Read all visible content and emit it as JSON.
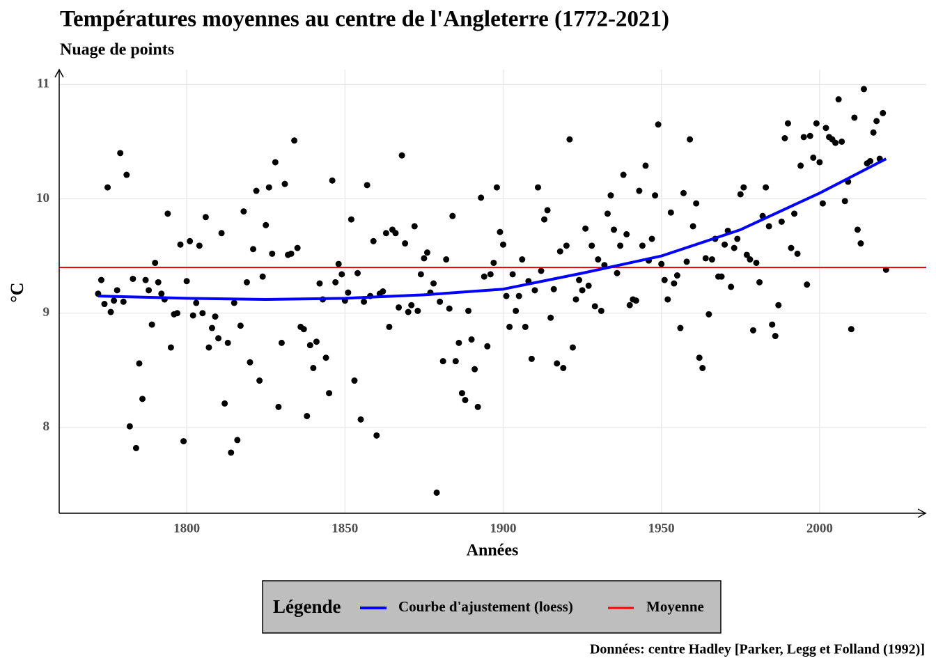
{
  "chart_data": {
    "type": "scatter",
    "title": "Températures moyennes au centre de l'Angleterre (1772-2021)",
    "subtitle": "Nuage de points",
    "xlabel": "Années",
    "ylabel": "°C",
    "caption": "Données: centre Hadley [Parker, Legg et Folland (1992)]",
    "legend_title": "Légende",
    "color": "#000000",
    "grid": true,
    "xlim": [
      1759.7,
      2033.7
    ],
    "ylim": [
      7.25,
      11.13
    ],
    "xticks": [
      1800,
      1850,
      1900,
      1950,
      2000
    ],
    "yticks": [
      8,
      9,
      10,
      11
    ],
    "x": [
      1772,
      1773,
      1774,
      1775,
      1776,
      1777,
      1778,
      1779,
      1780,
      1781,
      1782,
      1783,
      1784,
      1785,
      1786,
      1787,
      1788,
      1789,
      1790,
      1791,
      1792,
      1793,
      1794,
      1795,
      1796,
      1797,
      1798,
      1799,
      1800,
      1801,
      1802,
      1803,
      1804,
      1805,
      1806,
      1807,
      1808,
      1809,
      1810,
      1811,
      1812,
      1813,
      1814,
      1815,
      1816,
      1817,
      1818,
      1819,
      1820,
      1821,
      1822,
      1823,
      1824,
      1825,
      1826,
      1827,
      1828,
      1829,
      1830,
      1831,
      1832,
      1833,
      1834,
      1835,
      1836,
      1837,
      1838,
      1839,
      1840,
      1841,
      1842,
      1843,
      1844,
      1845,
      1846,
      1847,
      1848,
      1849,
      1850,
      1851,
      1852,
      1853,
      1854,
      1855,
      1856,
      1857,
      1858,
      1859,
      1860,
      1861,
      1862,
      1863,
      1864,
      1865,
      1866,
      1867,
      1868,
      1869,
      1870,
      1871,
      1872,
      1873,
      1874,
      1875,
      1876,
      1877,
      1878,
      1879,
      1880,
      1881,
      1882,
      1883,
      1884,
      1885,
      1886,
      1887,
      1888,
      1889,
      1890,
      1891,
      1892,
      1893,
      1894,
      1895,
      1896,
      1897,
      1898,
      1899,
      1900,
      1901,
      1902,
      1903,
      1904,
      1905,
      1906,
      1907,
      1908,
      1909,
      1910,
      1911,
      1912,
      1913,
      1914,
      1915,
      1916,
      1917,
      1918,
      1919,
      1920,
      1921,
      1922,
      1923,
      1924,
      1925,
      1926,
      1927,
      1928,
      1929,
      1930,
      1931,
      1932,
      1933,
      1934,
      1935,
      1936,
      1937,
      1938,
      1939,
      1940,
      1941,
      1942,
      1943,
      1944,
      1945,
      1946,
      1947,
      1948,
      1949,
      1950,
      1951,
      1952,
      1953,
      1954,
      1955,
      1956,
      1957,
      1958,
      1959,
      1960,
      1961,
      1962,
      1963,
      1964,
      1965,
      1966,
      1967,
      1968,
      1969,
      1970,
      1971,
      1972,
      1973,
      1974,
      1975,
      1976,
      1977,
      1978,
      1979,
      1980,
      1981,
      1982,
      1983,
      1984,
      1985,
      1986,
      1987,
      1988,
      1989,
      1990,
      1991,
      1992,
      1993,
      1994,
      1995,
      1996,
      1997,
      1998,
      1999,
      2000,
      2001,
      2002,
      2003,
      2004,
      2005,
      2006,
      2007,
      2008,
      2009,
      2010,
      2011,
      2012,
      2013,
      2014,
      2015,
      2016,
      2017,
      2018,
      2019,
      2020,
      2021
    ],
    "values": [
      9.17,
      9.29,
      9.08,
      10.1,
      9.01,
      9.11,
      9.2,
      10.4,
      9.1,
      10.21,
      8.01,
      9.3,
      7.82,
      8.56,
      8.25,
      9.29,
      9.2,
      8.9,
      9.44,
      9.27,
      9.17,
      9.12,
      9.87,
      8.7,
      8.99,
      9.0,
      9.6,
      7.88,
      9.28,
      9.63,
      8.98,
      9.09,
      9.59,
      9.0,
      9.84,
      8.7,
      8.87,
      8.97,
      8.78,
      9.7,
      8.21,
      8.74,
      7.78,
      9.09,
      7.89,
      8.89,
      9.89,
      9.27,
      8.57,
      9.56,
      10.07,
      8.41,
      9.32,
      9.77,
      10.1,
      9.52,
      10.32,
      8.18,
      8.74,
      10.13,
      9.51,
      9.52,
      10.51,
      9.57,
      8.88,
      8.86,
      8.1,
      8.72,
      8.52,
      8.75,
      9.26,
      9.12,
      8.61,
      8.3,
      10.16,
      9.27,
      9.43,
      9.34,
      9.11,
      9.18,
      9.82,
      8.41,
      9.35,
      8.07,
      9.1,
      10.12,
      9.15,
      9.63,
      7.93,
      9.17,
      9.19,
      9.7,
      8.88,
      9.73,
      9.7,
      9.05,
      10.38,
      9.61,
      9.01,
      9.07,
      9.76,
      9.02,
      9.34,
      9.48,
      9.53,
      9.18,
      9.26,
      7.43,
      9.1,
      8.58,
      9.47,
      9.04,
      9.85,
      8.58,
      8.74,
      8.3,
      8.24,
      9.02,
      8.77,
      8.51,
      8.18,
      10.01,
      9.32,
      8.71,
      9.34,
      9.44,
      10.1,
      9.71,
      9.6,
      9.15,
      8.88,
      9.34,
      9.02,
      9.15,
      9.47,
      8.88,
      9.28,
      8.6,
      9.2,
      10.1,
      9.37,
      9.82,
      9.9,
      8.96,
      9.21,
      8.56,
      9.54,
      8.52,
      9.59,
      10.52,
      8.7,
      9.12,
      9.29,
      9.2,
      9.74,
      9.24,
      9.59,
      9.06,
      9.47,
      9.02,
      9.42,
      9.87,
      10.03,
      9.73,
      9.35,
      9.59,
      10.21,
      9.69,
      9.07,
      9.12,
      9.11,
      10.07,
      9.59,
      10.29,
      9.46,
      9.65,
      10.03,
      10.65,
      9.43,
      9.29,
      9.12,
      9.88,
      9.26,
      9.33,
      8.87,
      10.05,
      9.45,
      10.52,
      9.76,
      9.96,
      8.61,
      8.52,
      9.48,
      8.99,
      9.47,
      9.65,
      9.32,
      9.32,
      9.6,
      9.72,
      9.23,
      9.57,
      9.65,
      10.04,
      10.1,
      9.51,
      9.47,
      8.85,
      9.44,
      9.27,
      9.85,
      10.1,
      9.76,
      8.9,
      8.8,
      9.07,
      9.8,
      10.53,
      10.66,
      9.57,
      9.87,
      9.52,
      10.29,
      10.54,
      9.25,
      10.55,
      10.36,
      10.66,
      10.32,
      9.96,
      10.62,
      10.54,
      10.52,
      10.49,
      10.87,
      10.5,
      9.98,
      10.15,
      8.86,
      10.71,
      9.73,
      9.61,
      10.96,
      10.31,
      10.33,
      10.58,
      10.68,
      10.35,
      10.75,
      9.38
    ],
    "fit": {
      "name": "Courbe d'ajustement (loess)",
      "color": "#0000ff",
      "x": [
        1772,
        1800,
        1825,
        1850,
        1875,
        1900,
        1925,
        1950,
        1975,
        2000,
        2021
      ],
      "values": [
        9.15,
        9.13,
        9.12,
        9.13,
        9.16,
        9.21,
        9.35,
        9.5,
        9.73,
        10.05,
        10.35
      ]
    },
    "mean": {
      "name": "Moyenne",
      "color": "#ff0000",
      "value": 9.4
    }
  }
}
